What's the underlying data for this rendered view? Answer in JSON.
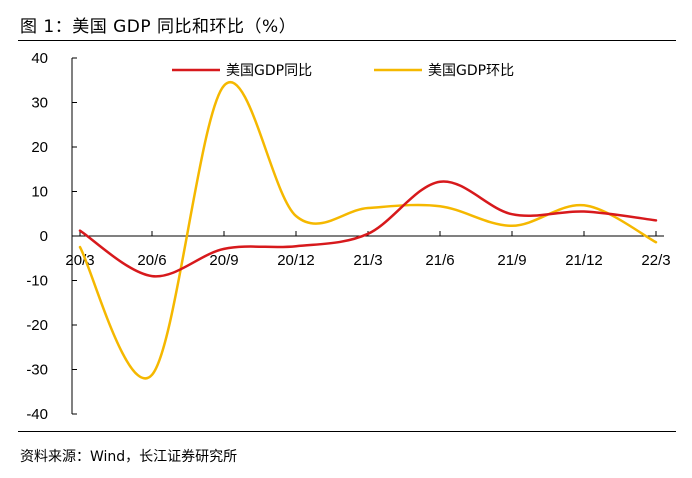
{
  "figure": {
    "title": "图 1：美国 GDP 同比和环比（%）",
    "source": "资料来源：Wind，长江证券研究所"
  },
  "chart_data": {
    "type": "line",
    "title": "图 1：美国 GDP 同比和环比（%）",
    "xlabel": "",
    "ylabel": "",
    "categories": [
      "20/3",
      "20/6",
      "20/9",
      "20/12",
      "21/3",
      "21/6",
      "21/9",
      "21/12",
      "22/3"
    ],
    "ylim": [
      -40,
      40
    ],
    "yticks": [
      40,
      30,
      20,
      10,
      0,
      -10,
      -20,
      -30,
      -40
    ],
    "grid": false,
    "legend_position": "top",
    "series": [
      {
        "name": "美国GDP同比",
        "color": "#d7191c",
        "values": [
          1.2,
          -9.0,
          -2.9,
          -2.3,
          0.5,
          12.2,
          4.9,
          5.5,
          3.5
        ]
      },
      {
        "name": "美国GDP环比",
        "color": "#f5b800",
        "values": [
          -2.5,
          -31.2,
          33.8,
          4.5,
          6.3,
          6.7,
          2.3,
          6.9,
          -1.4
        ]
      }
    ]
  }
}
